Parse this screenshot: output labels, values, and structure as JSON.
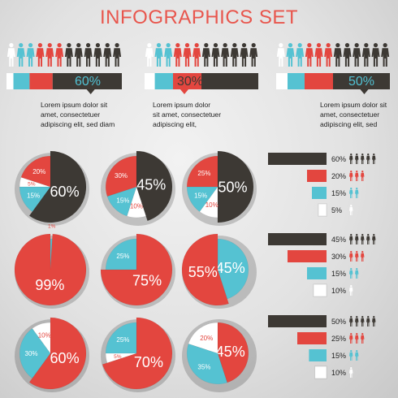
{
  "title": "INFOGRAPHICS SET",
  "colors": {
    "dark": "#3d3934",
    "red": "#e3463f",
    "blue": "#55c2d2",
    "white": "#ffffff",
    "accent_title": "#e8564d"
  },
  "top_panels": [
    {
      "percent": "60%",
      "people_white": 1,
      "people_blue": 2,
      "people_red": 3,
      "people_dark": 6,
      "bar": [
        {
          "c": "white",
          "f": 0.06
        },
        {
          "c": "blue",
          "f": 0.14
        },
        {
          "c": "red",
          "f": 0.2
        },
        {
          "c": "dark",
          "f": 0.6
        }
      ],
      "text": [
        "Lorem ipsum dolor sit",
        "amet, consectetuer",
        "adipiscing elit, sed diam"
      ]
    },
    {
      "percent": "30%",
      "people_white": 1,
      "people_blue": 2,
      "people_red": 3,
      "people_dark": 6,
      "bar": [
        {
          "c": "white",
          "f": 0.09
        },
        {
          "c": "blue",
          "f": 0.16
        },
        {
          "c": "red",
          "f": 0.25
        },
        {
          "c": "dark",
          "f": 0.5
        }
      ],
      "text": [
        "Lorem ipsum dolor",
        "sit amet, consectetuer",
        "adipiscing elit,"
      ]
    },
    {
      "percent": "50%",
      "people_white": 1,
      "people_blue": 2,
      "people_red": 3,
      "people_dark": 6,
      "bar": [
        {
          "c": "white",
          "f": 0.1
        },
        {
          "c": "blue",
          "f": 0.15
        },
        {
          "c": "red",
          "f": 0.25
        },
        {
          "c": "dark",
          "f": 0.5
        }
      ],
      "text": [
        "Lorem ipsum dolor sit",
        "amet, consectetuer",
        "adipiscing elit, sed"
      ]
    }
  ],
  "chart_data": [
    {
      "type": "pie",
      "slices": [
        {
          "label": "60%",
          "value": 60,
          "color": "dark"
        },
        {
          "label": "15%",
          "value": 15,
          "color": "blue"
        },
        {
          "label": "5%",
          "value": 5,
          "color": "white"
        },
        {
          "label": "20%",
          "value": 20,
          "color": "red"
        }
      ]
    },
    {
      "type": "pie",
      "slices": [
        {
          "label": "45%",
          "value": 45,
          "color": "dark"
        },
        {
          "label": "10%",
          "value": 10,
          "color": "white"
        },
        {
          "label": "15%",
          "value": 15,
          "color": "blue"
        },
        {
          "label": "30%",
          "value": 30,
          "color": "red"
        }
      ]
    },
    {
      "type": "pie",
      "slices": [
        {
          "label": "50%",
          "value": 50,
          "color": "dark"
        },
        {
          "label": "10%",
          "value": 10,
          "color": "white"
        },
        {
          "label": "15%",
          "value": 15,
          "color": "blue"
        },
        {
          "label": "25%",
          "value": 25,
          "color": "red"
        }
      ]
    },
    {
      "type": "pie",
      "slices": [
        {
          "label": "1%",
          "value": 1,
          "color": "blue"
        },
        {
          "label": "99%",
          "value": 99,
          "color": "red"
        }
      ]
    },
    {
      "type": "pie",
      "slices": [
        {
          "label": "75%",
          "value": 75,
          "color": "red"
        },
        {
          "label": "25%",
          "value": 25,
          "color": "blue"
        }
      ]
    },
    {
      "type": "pie",
      "slices": [
        {
          "label": "45%",
          "value": 45,
          "color": "blue"
        },
        {
          "label": "55%",
          "value": 55,
          "color": "red"
        }
      ]
    },
    {
      "type": "pie",
      "slices": [
        {
          "label": "60%",
          "value": 60,
          "color": "red"
        },
        {
          "label": "30%",
          "value": 30,
          "color": "blue"
        },
        {
          "label": "10%",
          "value": 10,
          "color": "white"
        }
      ]
    },
    {
      "type": "pie",
      "slices": [
        {
          "label": "70%",
          "value": 70,
          "color": "red"
        },
        {
          "label": "5%",
          "value": 5,
          "color": "white"
        },
        {
          "label": "25%",
          "value": 25,
          "color": "blue"
        }
      ]
    },
    {
      "type": "pie",
      "slices": [
        {
          "label": "45%",
          "value": 45,
          "color": "red"
        },
        {
          "label": "35%",
          "value": 35,
          "color": "blue"
        },
        {
          "label": "20%",
          "value": 20,
          "color": "white"
        }
      ]
    },
    {
      "type": "bar",
      "categories": [
        "60%",
        "20%",
        "15%",
        "5%"
      ],
      "values": [
        60,
        20,
        15,
        5
      ],
      "colors": [
        "dark",
        "red",
        "blue",
        "white"
      ]
    },
    {
      "type": "bar",
      "categories": [
        "45%",
        "30%",
        "15%",
        "10%"
      ],
      "values": [
        45,
        30,
        15,
        10
      ],
      "colors": [
        "dark",
        "red",
        "blue",
        "white"
      ]
    },
    {
      "type": "bar",
      "categories": [
        "50%",
        "25%",
        "15%",
        "10%"
      ],
      "values": [
        50,
        25,
        15,
        10
      ],
      "colors": [
        "dark",
        "red",
        "blue",
        "white"
      ]
    }
  ]
}
